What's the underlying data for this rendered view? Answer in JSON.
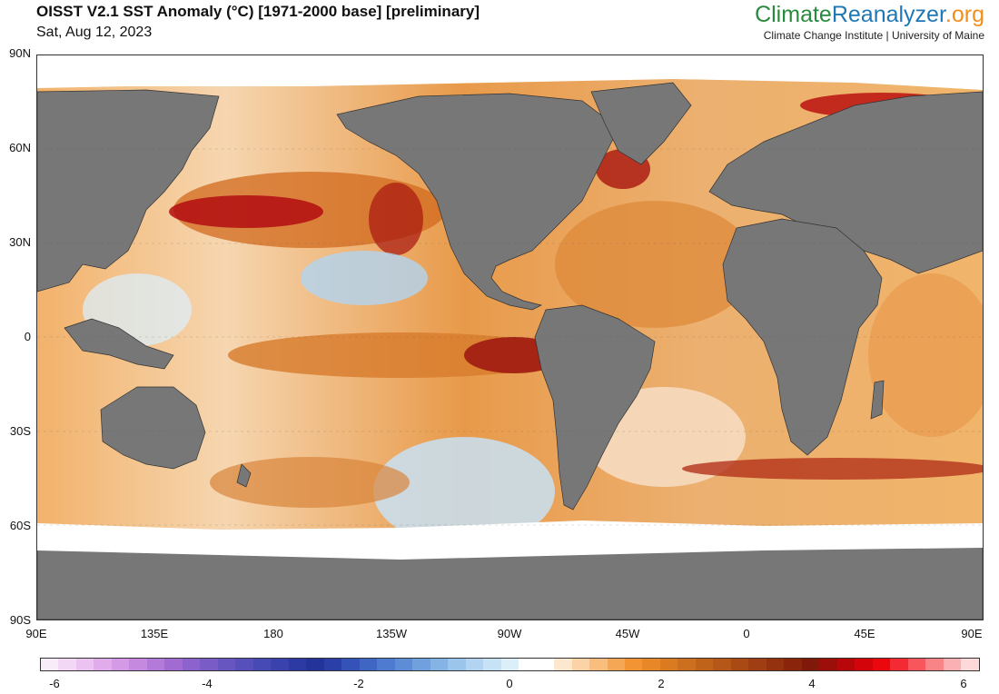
{
  "header": {
    "title": "OISST V2.1 SST Anomaly (°C) [1971-2000 base] [preliminary]",
    "date": "Sat, Aug 12, 2023"
  },
  "brand": {
    "name_part1": "Climate",
    "name_part2": "Reanalyzer",
    "name_part3": ".org",
    "subtitle": "Climate Change Institute | University of Maine",
    "colors": {
      "climate": "#2a8a3e",
      "reanalyzer": "#1f78b4",
      "org": "#f28e1c"
    }
  },
  "map": {
    "latitude_labels": [
      "90N",
      "60N",
      "30N",
      "0",
      "30S",
      "60S",
      "90S"
    ],
    "longitude_labels": [
      "90E",
      "135E",
      "180",
      "135W",
      "90W",
      "45W",
      "0",
      "45E",
      "90E"
    ],
    "colors": {
      "land": "#777777",
      "ice": "#ffffff",
      "border": "#333333"
    }
  },
  "colorbar": {
    "labels": [
      "-6",
      "-4",
      "-2",
      "0",
      "2",
      "4",
      "6"
    ],
    "range": [
      -6,
      6
    ],
    "colors": [
      "#f9ecf9",
      "#f3d8f5",
      "#ebc3f1",
      "#e1acec",
      "#d49ae6",
      "#c58ae0",
      "#b37ad9",
      "#a06cd2",
      "#8c63cc",
      "#7a5cc6",
      "#6856c0",
      "#5750bb",
      "#4749b4",
      "#3942ad",
      "#2d3aa3",
      "#24339a",
      "#2a3fa8",
      "#3552b8",
      "#4066c4",
      "#4e7acf",
      "#5e8dd8",
      "#71a0df",
      "#86b3e6",
      "#9cc5ec",
      "#b2d4f1",
      "#c8e2f5",
      "#dceef8",
      "#ffffff",
      "#ffffff",
      "#fde8cf",
      "#fbd3a6",
      "#f9bd7d",
      "#f6a755",
      "#f29434",
      "#e88727",
      "#da7b22",
      "#cc6f1e",
      "#bf631b",
      "#b45718",
      "#a94a15",
      "#9e3e12",
      "#94320f",
      "#8a250c",
      "#80190a",
      "#9c0e0a",
      "#b8070a",
      "#d4050a",
      "#ea080e",
      "#f32a34",
      "#f7565c",
      "#f98488",
      "#fbb1b3",
      "#fdd9da"
    ]
  }
}
